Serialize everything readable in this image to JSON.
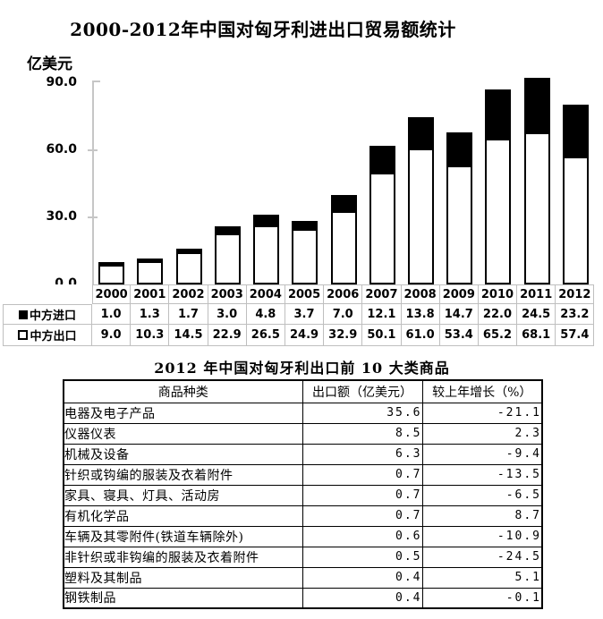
{
  "chart_data": {
    "type": "bar",
    "stacked": true,
    "title": "2000-2012年中国对匈牙利进出口贸易额统计",
    "ylabel": "亿美元",
    "xlabel": "",
    "ylim": [
      0,
      90
    ],
    "y_ticks": [
      0,
      30,
      60,
      90
    ],
    "y_tick_labels": [
      "0.0",
      "30.0",
      "60.0",
      "90.0"
    ],
    "grid": false,
    "legend_position": "data-table-left",
    "categories": [
      "2000",
      "2001",
      "2002",
      "2003",
      "2004",
      "2005",
      "2006",
      "2007",
      "2008",
      "2009",
      "2010",
      "2011",
      "2012"
    ],
    "series": [
      {
        "name": "中方进口",
        "legend_symbol": "filled-square",
        "color": "#000000",
        "stack_position": "top",
        "values": [
          1.0,
          1.3,
          1.7,
          3.0,
          4.8,
          3.7,
          7.0,
          12.1,
          13.8,
          14.7,
          22.0,
          24.5,
          23.2
        ]
      },
      {
        "name": "中方出口",
        "legend_symbol": "open-square",
        "color": "#ffffff",
        "stack_position": "bottom",
        "values": [
          9.0,
          10.3,
          14.5,
          22.9,
          26.5,
          24.9,
          32.9,
          50.1,
          61.0,
          53.4,
          65.2,
          68.1,
          57.4
        ]
      }
    ]
  },
  "commodity_table": {
    "title": "2012 年中国对匈牙利出口前 10 大类商品",
    "headers": [
      "商品种类",
      "出口额（亿美元）",
      "较上年增长（%）"
    ],
    "rows": [
      {
        "name": "电器及电子产品",
        "export_value": "35.6",
        "growth": "-21.1"
      },
      {
        "name": "仪器仪表",
        "export_value": "8.5",
        "growth": "2.3"
      },
      {
        "name": "机械及设备",
        "export_value": "6.3",
        "growth": "-9.4"
      },
      {
        "name": "针织或钩编的服装及衣着附件",
        "export_value": "0.7",
        "growth": "-13.5"
      },
      {
        "name": "家具、寝具、灯具、活动房",
        "export_value": "0.7",
        "growth": "-6.5"
      },
      {
        "name": "有机化学品",
        "export_value": "0.7",
        "growth": "8.7"
      },
      {
        "name": "车辆及其零附件(铁道车辆除外)",
        "export_value": "0.6",
        "growth": "-10.9"
      },
      {
        "name": "非针织或非钩编的服装及衣着附件",
        "export_value": "0.5",
        "growth": "-24.5"
      },
      {
        "name": "塑料及其制品",
        "export_value": "0.4",
        "growth": "5.1"
      },
      {
        "name": "钢铁制品",
        "export_value": "0.4",
        "growth": "-0.1"
      }
    ]
  },
  "colors": {
    "import_bar": "#000000",
    "export_bar": "#ffffff",
    "bar_outline": "#000000",
    "axis": "#c6c6c6",
    "chart_table_border": "#bfbfbf",
    "commodity_table_border": "#000000"
  }
}
